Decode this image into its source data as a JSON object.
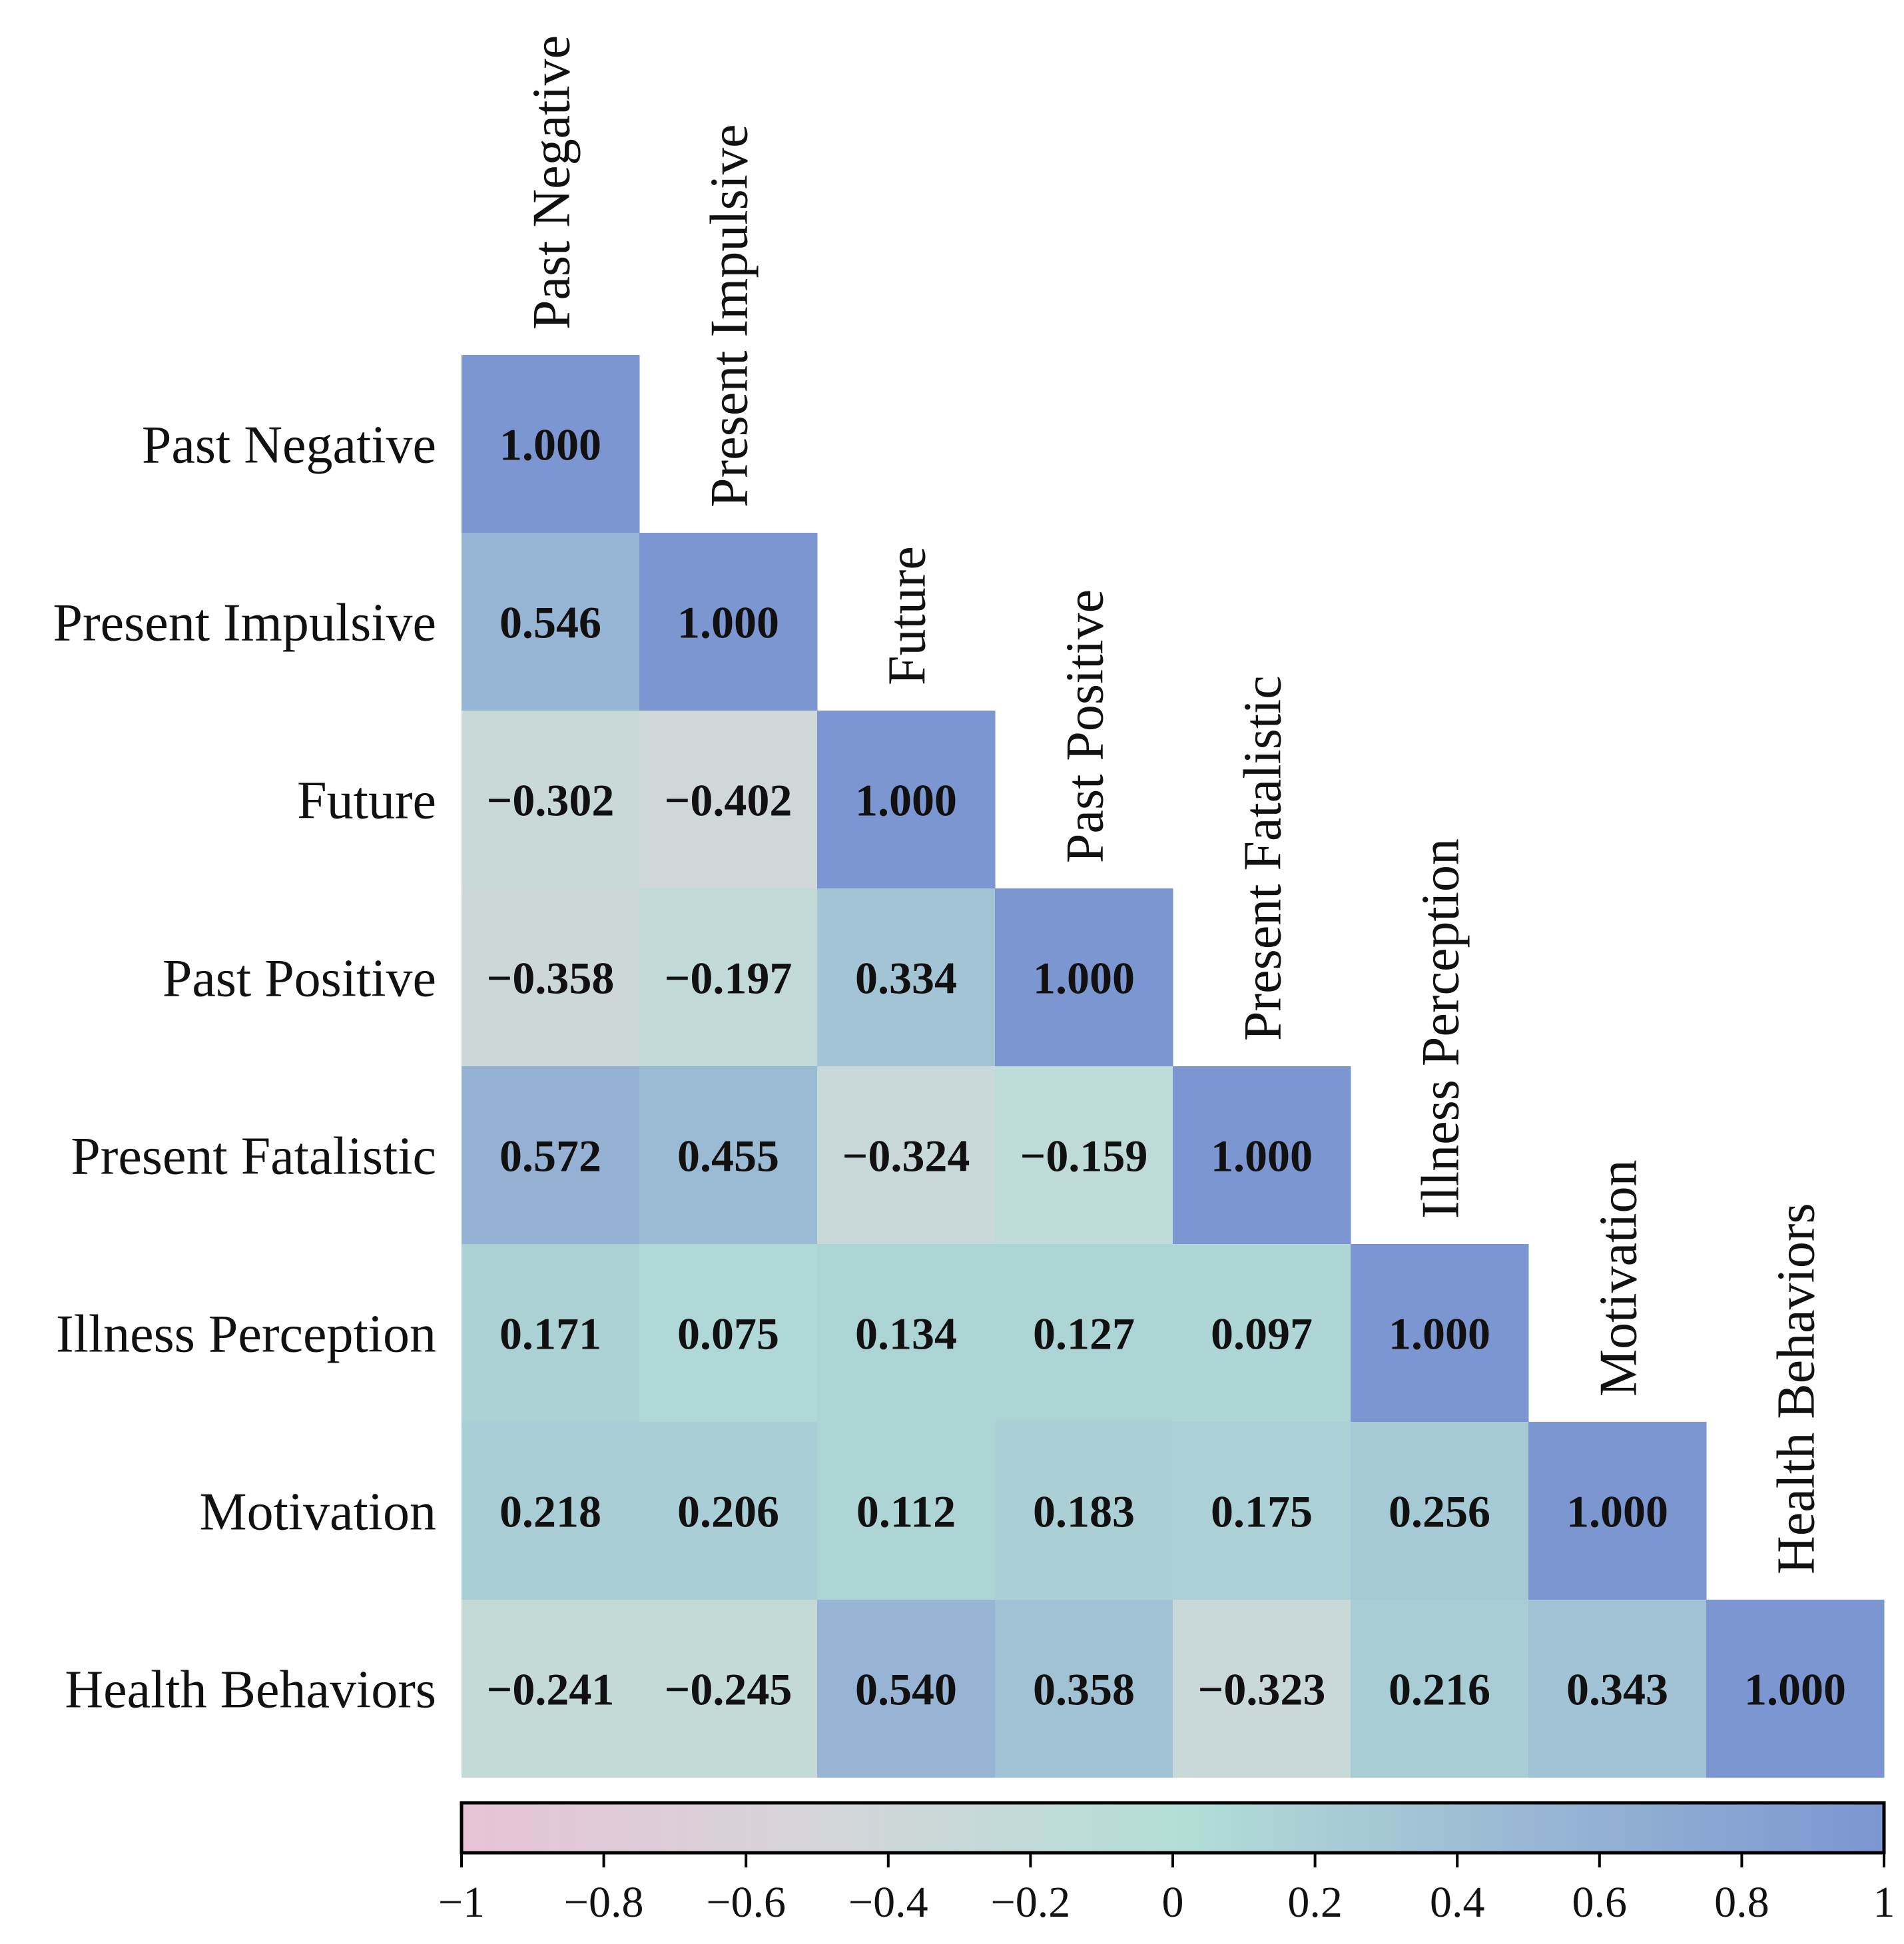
{
  "chart_data": {
    "type": "heatmap",
    "title": "",
    "variables": [
      "Past Negative",
      "Present Impulsive",
      "Future",
      "Past Positive",
      "Present Fatalistic",
      "Illness Perception",
      "Motivation",
      "Health Behaviors"
    ],
    "matrix": [
      [
        "1.000"
      ],
      [
        "0.546",
        "1.000"
      ],
      [
        "−0.302",
        "−0.402",
        "1.000"
      ],
      [
        "−0.358",
        "−0.197",
        "0.334",
        "1.000"
      ],
      [
        "0.572",
        "0.455",
        "−0.324",
        "−0.159",
        "1.000"
      ],
      [
        "0.171",
        "0.075",
        "0.134",
        "0.127",
        "0.097",
        "1.000"
      ],
      [
        "0.218",
        "0.206",
        "0.112",
        "0.183",
        "0.175",
        "0.256",
        "1.000"
      ],
      [
        "−0.241",
        "−0.245",
        "0.540",
        "0.358",
        "−0.323",
        "0.216",
        "0.343",
        "1.000"
      ]
    ],
    "colorbar": {
      "range": [
        -1,
        1
      ],
      "ticks": [
        "−1",
        "−0.8",
        "−0.6",
        "−0.4",
        "−0.2",
        "0",
        "0.2",
        "0.4",
        "0.6",
        "0.8",
        "1"
      ],
      "tick_values": [
        -1,
        -0.8,
        -0.6,
        -0.4,
        -0.2,
        0,
        0.2,
        0.4,
        0.6,
        0.8,
        1
      ],
      "stops": [
        {
          "value": -1,
          "color": "#e8c3d6"
        },
        {
          "value": -0.5,
          "color": "#d5d5d9"
        },
        {
          "value": 0,
          "color": "#b4ded6"
        },
        {
          "value": 0.5,
          "color": "#99b7d4"
        },
        {
          "value": 1,
          "color": "#7b96d1"
        }
      ]
    }
  }
}
